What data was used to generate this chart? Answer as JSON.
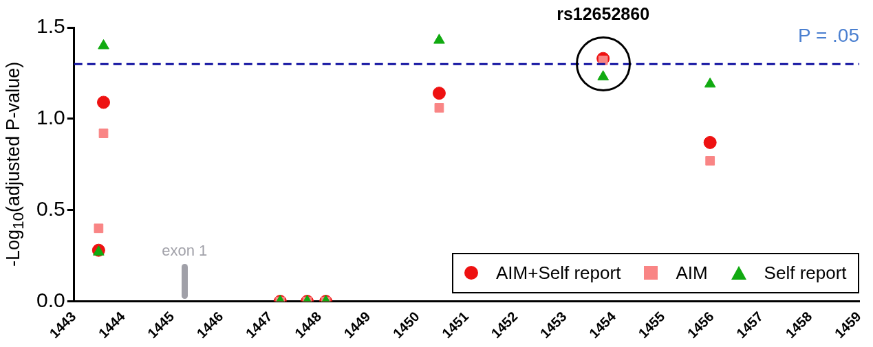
{
  "chart_data": {
    "type": "scatter",
    "ylabel": "-Log$_{10}$(adjusted P-value)",
    "xlim": [
      1443,
      1459
    ],
    "xticks": [
      1443,
      1444,
      1445,
      1446,
      1447,
      1448,
      1449,
      1450,
      1451,
      1452,
      1453,
      1454,
      1455,
      1456,
      1457,
      1458,
      1459
    ],
    "ylim": [
      0,
      1.5
    ],
    "yticks": [
      {
        "value": 0,
        "label": "0.0"
      },
      0.5,
      {
        "value": 1,
        "label": "1.0"
      },
      1.5
    ],
    "grid": false,
    "legend": "bottom right",
    "series": [
      {
        "name": "AIM+Self report",
        "color": "#ee1111",
        "marker": "circle",
        "x": [
          1443.5,
          1443.6,
          1447.2,
          1447.75,
          1448.13,
          1450.44,
          1453.78,
          1455.96
        ],
        "values": [
          0.28,
          1.09,
          0,
          0,
          0,
          1.14,
          1.33,
          0.87
        ]
      },
      {
        "name": "AIM",
        "color": "#f98585",
        "marker": "square",
        "x": [
          1443.5,
          1443.6,
          1447.2,
          1447.75,
          1448.13,
          1450.44,
          1453.78,
          1455.96
        ],
        "values": [
          0.4,
          0.92,
          0,
          0,
          0,
          1.06,
          1.32,
          0.77
        ]
      },
      {
        "name": "Self report",
        "color": "#11aa11",
        "marker": "triangle",
        "x": [
          1443.5,
          1443.6,
          1447.2,
          1447.75,
          1448.13,
          1450.44,
          1453.78,
          1455.96
        ],
        "values": [
          0.27,
          1.4,
          0,
          0,
          0,
          1.43,
          1.23,
          1.19
        ]
      }
    ],
    "ref_lines": [
      {
        "axis": "y",
        "value": 1.3,
        "label": "P = .05",
        "color": "#1010a0",
        "line_style": "dashed"
      }
    ],
    "annotations": [
      {
        "text": "rs12652860",
        "x": 1453.78,
        "y": 1.3
      },
      "exon 1"
    ]
  }
}
